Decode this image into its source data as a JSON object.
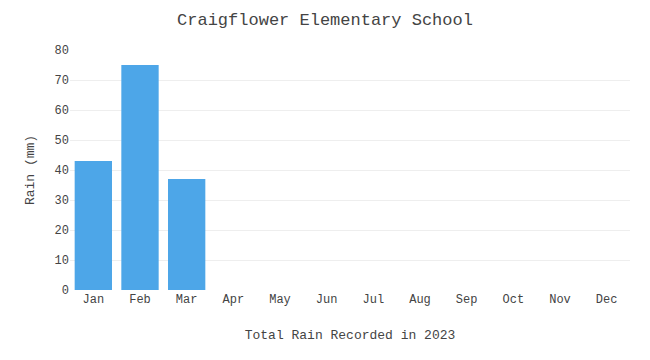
{
  "chart_data": {
    "type": "bar",
    "title": "Craigflower Elementary School",
    "xlabel": "Total Rain Recorded in 2023",
    "ylabel": "Rain (mm)",
    "categories": [
      "Jan",
      "Feb",
      "Mar",
      "Apr",
      "May",
      "Jun",
      "Jul",
      "Aug",
      "Sep",
      "Oct",
      "Nov",
      "Dec"
    ],
    "values": [
      43,
      75,
      37,
      0,
      0,
      0,
      0,
      0,
      0,
      0,
      0,
      0
    ],
    "color": "#4DA6E8",
    "ylim": [
      0,
      80
    ],
    "yticks": [
      0,
      10,
      20,
      30,
      40,
      50,
      60,
      70,
      80
    ],
    "grid": true
  }
}
